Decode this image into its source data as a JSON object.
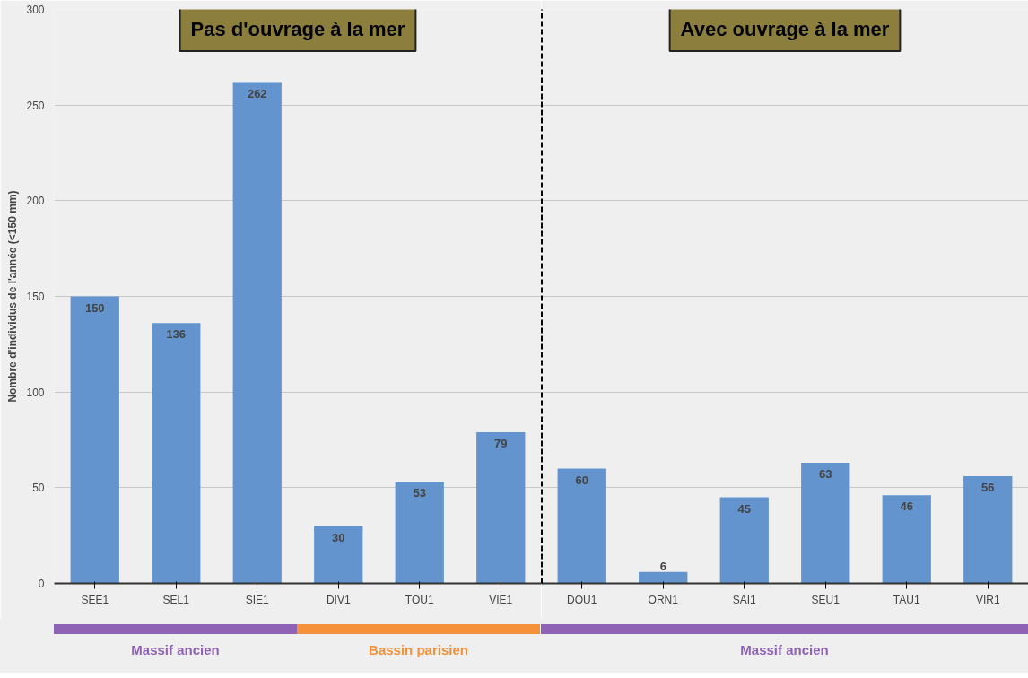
{
  "chart_data": [
    {
      "type": "bar",
      "ylabel": "Nombre d'individus de l'année (<150 mm)",
      "categories": [
        "SEE1",
        "SEL1",
        "SIE1",
        "DIV1",
        "TOU1",
        "VIE1"
      ],
      "values": [
        150,
        136,
        262,
        30,
        53,
        79
      ],
      "color": "#6394cd",
      "data_labels": true,
      "ylim": [
        0,
        300
      ],
      "yticks": [
        0,
        50,
        100,
        150,
        200,
        250,
        300
      ],
      "grid": "y",
      "annotations": [
        "Pas d'ouvrage à la mer",
        "Massif ancien",
        "Bassin parisien"
      ]
    },
    {
      "type": "bar",
      "categories": [
        "DOU1",
        "ORN1",
        "SAI1",
        "SEU1",
        "TAU1",
        "VIR1"
      ],
      "values": [
        60,
        6,
        45,
        63,
        46,
        56
      ],
      "color": "#6394cd",
      "data_labels": true,
      "ylim": [
        0,
        300
      ],
      "yticks": [
        0,
        50,
        100,
        150,
        200,
        250,
        300
      ],
      "grid": "y",
      "tick_labels": "x",
      "annotations": [
        "Avec ouvrage à la mer",
        "Massif ancien"
      ]
    }
  ]
}
